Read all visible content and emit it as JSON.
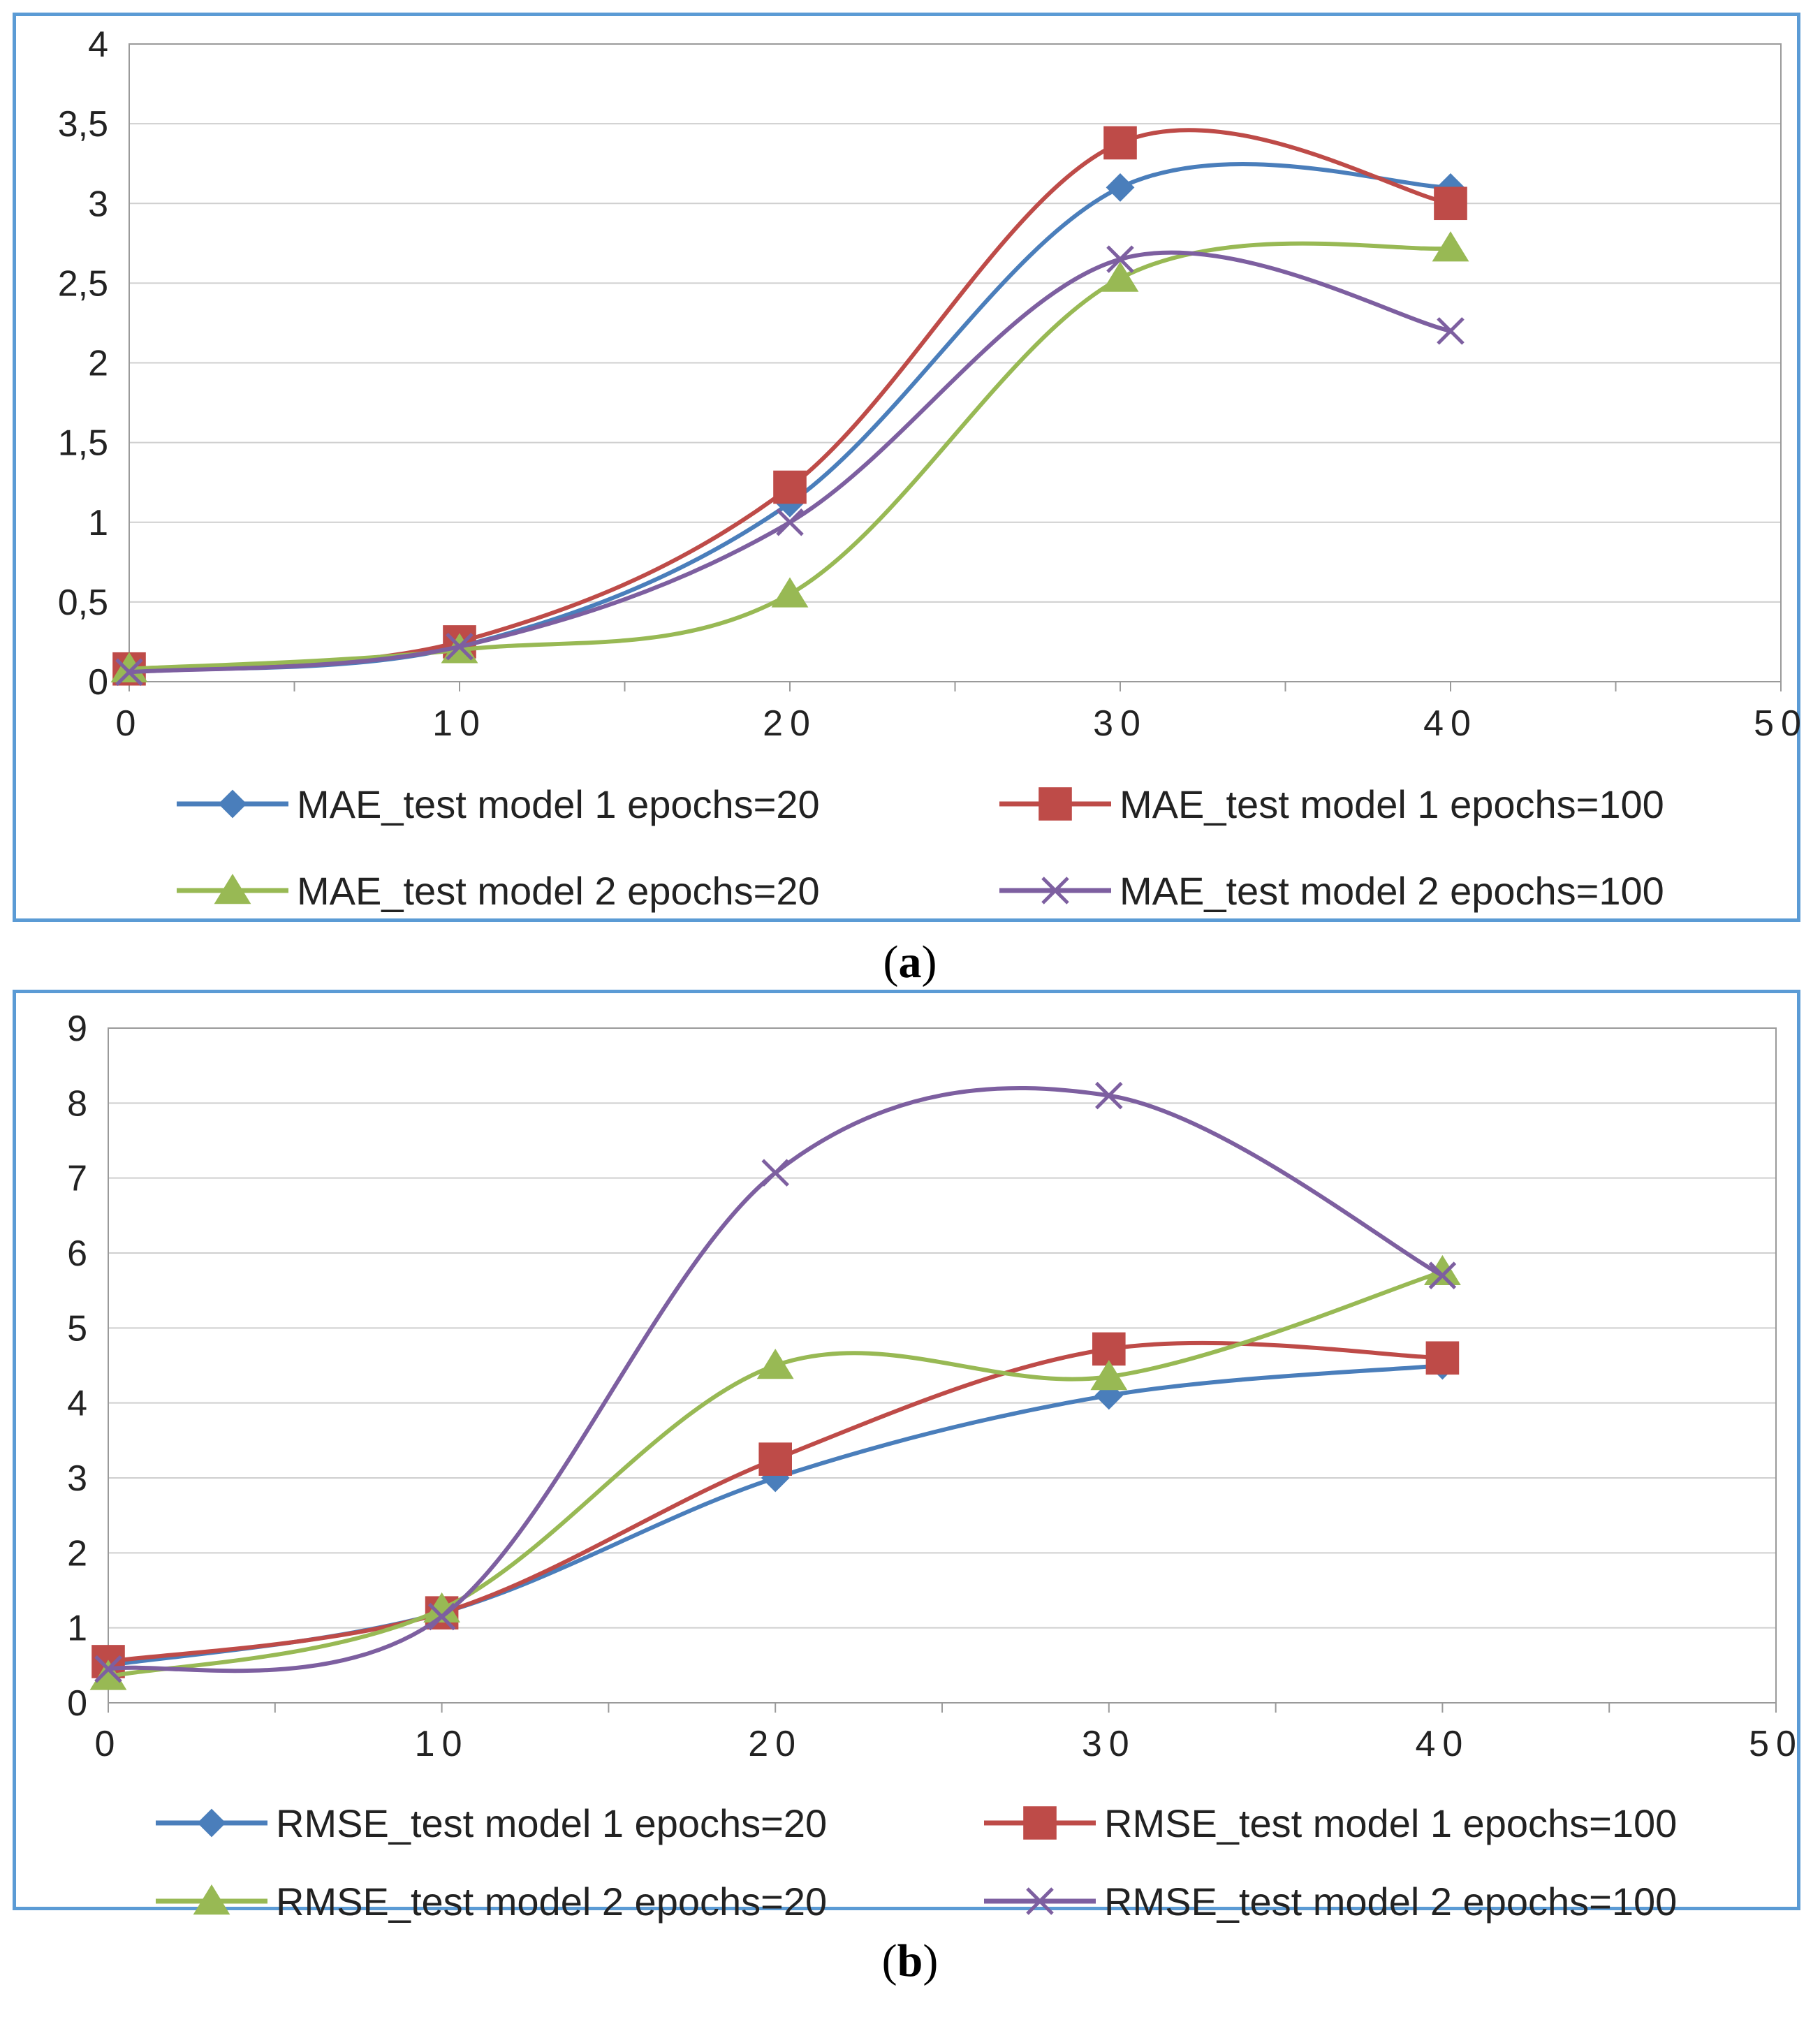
{
  "panels": [
    {
      "id": "a",
      "caption_open": "(",
      "caption_letter": "a",
      "caption_close": ")"
    },
    {
      "id": "b",
      "caption_open": "(",
      "caption_letter": "b",
      "caption_close": ")"
    }
  ],
  "chart_data": [
    {
      "type": "line",
      "title": "",
      "xlabel": "",
      "ylabel": "",
      "xlim": [
        0,
        50
      ],
      "ylim": [
        0,
        4
      ],
      "x_ticks": [
        0,
        10,
        20,
        30,
        40,
        50
      ],
      "y_ticks": [
        0,
        0.5,
        1,
        1.5,
        2,
        2.5,
        3,
        3.5,
        4
      ],
      "x_tick_labels": [
        "0",
        "10",
        "20",
        "30",
        "40",
        "50"
      ],
      "y_tick_labels": [
        "0",
        "0,5",
        "1",
        "1,5",
        "2",
        "2,5",
        "3",
        "3,5",
        "4"
      ],
      "grid": "horizontal",
      "legend_position": "bottom",
      "smooth": true,
      "x": [
        0,
        10,
        20,
        30,
        40
      ],
      "series": [
        {
          "name": "MAE_test model 1 epochs=20",
          "color": "#4a7ebb",
          "marker": "diamond",
          "values": [
            0.07,
            0.22,
            1.12,
            3.1,
            3.1
          ]
        },
        {
          "name": "MAE_test model 1 epochs=100",
          "color": "#be4b48",
          "marker": "square",
          "values": [
            0.08,
            0.25,
            1.22,
            3.38,
            3.0
          ]
        },
        {
          "name": "MAE_test model 2 epochs=20",
          "color": "#98b954",
          "marker": "triangle",
          "values": [
            0.08,
            0.2,
            0.55,
            2.53,
            2.72
          ]
        },
        {
          "name": "MAE_test model 2 epochs=100",
          "color": "#7d5fa0",
          "marker": "x",
          "values": [
            0.06,
            0.22,
            1.0,
            2.65,
            2.2
          ]
        }
      ]
    },
    {
      "type": "line",
      "title": "",
      "xlabel": "",
      "ylabel": "",
      "xlim": [
        0,
        50
      ],
      "ylim": [
        0,
        9
      ],
      "x_ticks": [
        0,
        10,
        20,
        30,
        40,
        50
      ],
      "y_ticks": [
        0,
        1,
        2,
        3,
        4,
        5,
        6,
        7,
        8,
        9
      ],
      "x_tick_labels": [
        "0",
        "10",
        "20",
        "30",
        "40",
        "50"
      ],
      "y_tick_labels": [
        "0",
        "1",
        "2",
        "3",
        "4",
        "5",
        "6",
        "7",
        "8",
        "9"
      ],
      "grid": "horizontal",
      "legend_position": "bottom",
      "smooth": true,
      "x": [
        0,
        10,
        20,
        30,
        40
      ],
      "series": [
        {
          "name": "RMSE_test model 1 epochs=20",
          "color": "#4a7ebb",
          "marker": "diamond",
          "values": [
            0.5,
            1.2,
            3.0,
            4.1,
            4.5
          ]
        },
        {
          "name": "RMSE_test model 1 epochs=100",
          "color": "#be4b48",
          "marker": "square",
          "values": [
            0.55,
            1.2,
            3.25,
            4.72,
            4.6
          ]
        },
        {
          "name": "RMSE_test model 2 epochs=20",
          "color": "#98b954",
          "marker": "triangle",
          "values": [
            0.35,
            1.25,
            4.5,
            4.35,
            5.75
          ]
        },
        {
          "name": "RMSE_test model 2 epochs=100",
          "color": "#7d5fa0",
          "marker": "x",
          "values": [
            0.45,
            1.15,
            7.07,
            8.1,
            5.7
          ]
        }
      ]
    }
  ]
}
